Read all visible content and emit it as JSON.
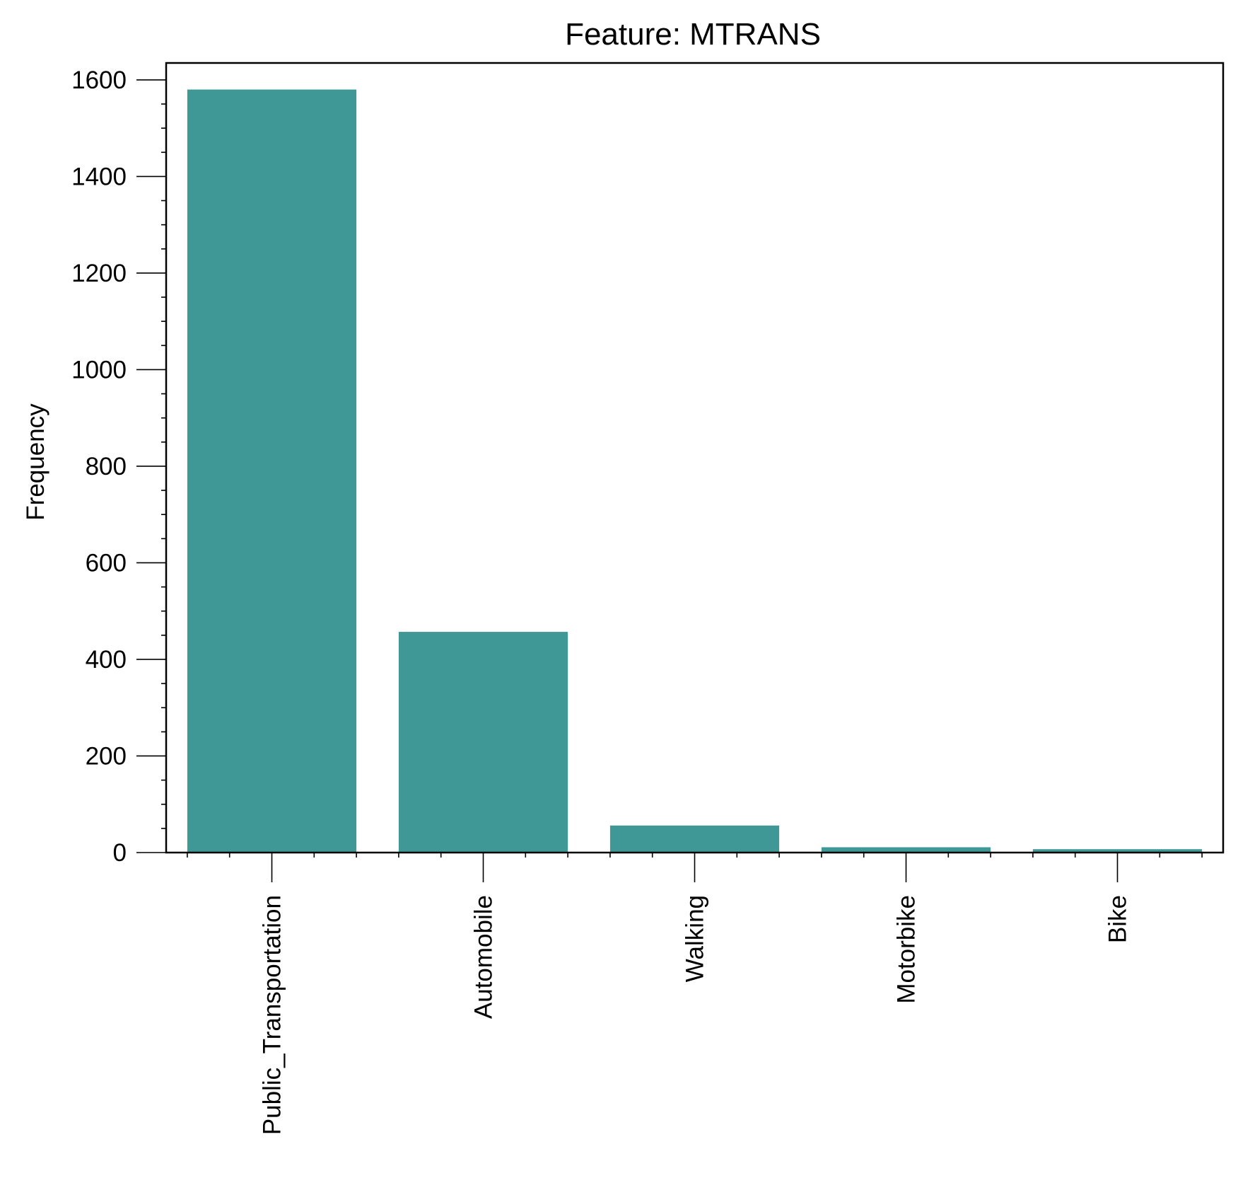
{
  "chart_data": {
    "type": "bar",
    "title": "Feature: MTRANS",
    "xlabel": "",
    "ylabel": "Frequency",
    "categories": [
      "Public_Transportation",
      "Automobile",
      "Walking",
      "Motorbike",
      "Bike"
    ],
    "values": [
      1580,
      457,
      56,
      11,
      7
    ],
    "ylim": [
      0,
      1635
    ],
    "yticks": [
      0,
      200,
      400,
      600,
      800,
      1000,
      1200,
      1400,
      1600
    ],
    "ytick_labels": [
      "0",
      "200",
      "400",
      "600",
      "800",
      "1000",
      "1200",
      "1400",
      "1600"
    ],
    "minor_ytick_step": 50,
    "grid": false,
    "legend": "none",
    "bar_color": "#3f9896",
    "x_tick_label_rotation": "vertical"
  }
}
